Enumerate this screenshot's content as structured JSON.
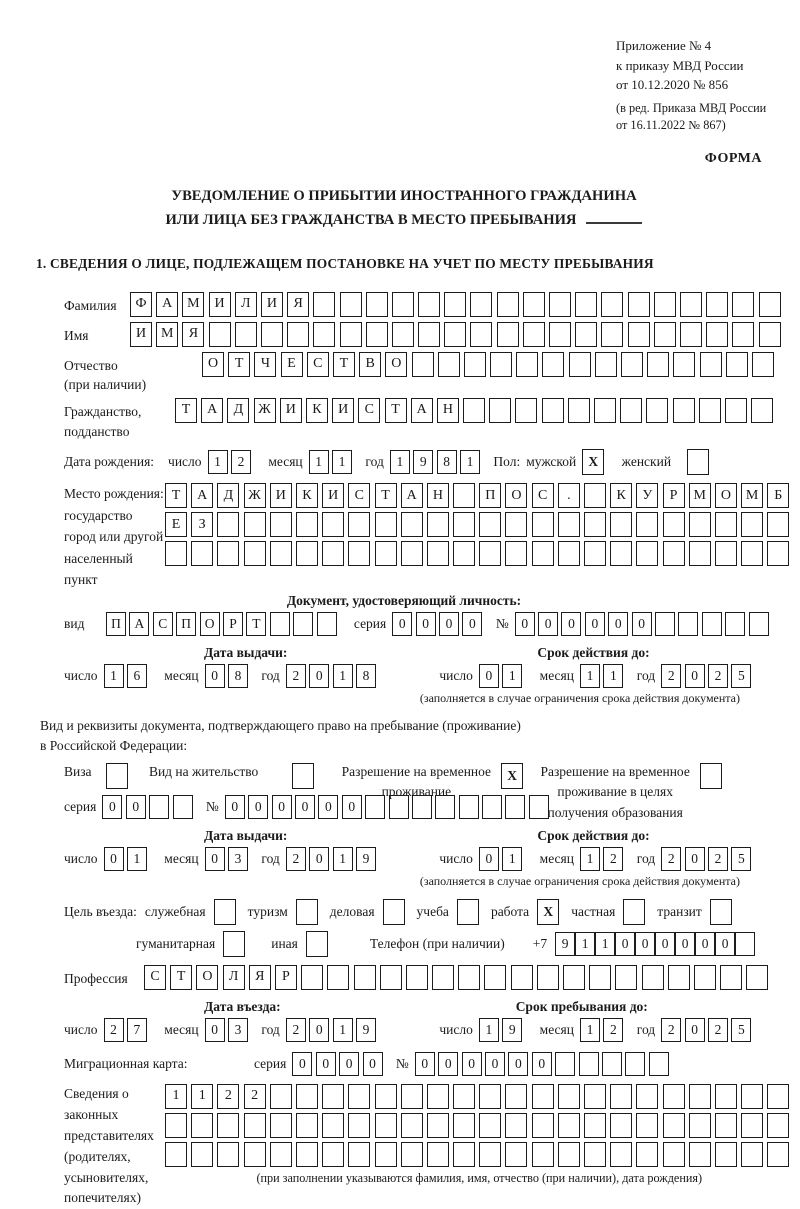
{
  "header": {
    "ref_lines": [
      "Приложение № 4",
      "к приказу МВД России",
      "от 10.12.2020 № 856"
    ],
    "ref_sub_lines": [
      "(в ред. Приказа МВД России",
      "от 16.11.2022 № 867)"
    ],
    "form_label": "ФОРМА"
  },
  "title": {
    "line1": "УВЕДОМЛЕНИЕ О ПРИБЫТИИ ИНОСТРАННОГО ГРАЖДАНИНА",
    "line2": "ИЛИ ЛИЦА БЕЗ ГРАЖДАНСТВА В МЕСТО ПРЕБЫВАНИЯ"
  },
  "section1": {
    "heading": "1. СВЕДЕНИЯ О ЛИЦЕ, ПОДЛЕЖАЩЕМ ПОСТАНОВКЕ НА УЧЕТ ПО МЕСТУ ПРЕБЫВАНИЯ"
  },
  "labels": {
    "day": "число",
    "month": "месяц",
    "year": "год",
    "series": "серия",
    "number": "№"
  },
  "person": {
    "surname_label": "Фамилия",
    "surname": "ФАМИЛИЯ",
    "name_label": "Имя",
    "name": "ИМЯ",
    "patronymic_label": "Отчество",
    "patronymic_label2": "(при наличии)",
    "patronymic": "ОТЧЕСТВО",
    "citizenship_label": "Гражданство,",
    "citizenship_label2": "подданство",
    "citizenship": "ТАДЖИКИСТАН"
  },
  "birth": {
    "label": "Дата рождения:",
    "day": "12",
    "month": "11",
    "year": "1981",
    "sex_label": "Пол:",
    "male_label": "мужской",
    "male_mark": "X",
    "female_label": "женский",
    "female_mark": ""
  },
  "birthplace": {
    "labels": [
      "Место рождения:",
      "государство",
      "город или другой",
      "населенный пункт"
    ],
    "row1": "ТАДЖИКИСТАН ПОС. КУРМОМБ",
    "row2": "ЕЗ",
    "row3": ""
  },
  "id_doc": {
    "heading": "Документ, удостоверяющий личность:",
    "type_label": "вид",
    "type_value": "ПАСПОРТ",
    "series_value": "0000",
    "number_value": "000000",
    "issue_heading": "Дата выдачи:",
    "issue": {
      "day": "16",
      "month": "08",
      "year": "2018"
    },
    "valid_heading": "Срок действия до:",
    "valid": {
      "day": "01",
      "month": "11",
      "year": "2025"
    },
    "note": "(заполняется в случае ограничения срока действия документа)"
  },
  "res_doc": {
    "line1": "Вид и реквизиты документа, подтверждающего право на пребывание (проживание)",
    "line2": "в Российской Федерации:",
    "options": [
      {
        "label_lines": [
          "Виза"
        ],
        "mark": ""
      },
      {
        "label_lines": [
          "Вид на жительство"
        ],
        "mark": ""
      },
      {
        "label_lines": [
          "Разрешение на временное",
          "проживание"
        ],
        "mark": "X"
      },
      {
        "label_lines": [
          "Разрешение на временное",
          "проживание в целях",
          "получения образования"
        ],
        "mark": ""
      }
    ],
    "series_value": "00",
    "number_value": "000000",
    "issue_heading": "Дата выдачи:",
    "issue": {
      "day": "01",
      "month": "03",
      "year": "2019"
    },
    "valid_heading": "Срок действия до:",
    "valid": {
      "day": "01",
      "month": "12",
      "year": "2025"
    },
    "note": "(заполняется в случае ограничения срока действия документа)"
  },
  "purpose": {
    "label": "Цель въезда:",
    "row1": [
      {
        "label": "служебная",
        "mark": ""
      },
      {
        "label": "туризм",
        "mark": ""
      },
      {
        "label": "деловая",
        "mark": ""
      },
      {
        "label": "учеба",
        "mark": ""
      },
      {
        "label": "работа",
        "mark": "X"
      },
      {
        "label": "частная",
        "mark": ""
      },
      {
        "label": "транзит",
        "mark": ""
      }
    ],
    "row2": [
      {
        "label": "гуманитарная",
        "mark": ""
      },
      {
        "label": "иная",
        "mark": ""
      }
    ],
    "phone_label": "Телефон (при наличии)",
    "phone_prefix": "+7",
    "phone_value": "911000000"
  },
  "profession": {
    "label": "Профессия",
    "value": "СТОЛЯР"
  },
  "entry": {
    "issue_heading": "Дата въезда:",
    "issue": {
      "day": "27",
      "month": "03",
      "year": "2019"
    },
    "valid_heading": "Срок пребывания до:",
    "valid": {
      "day": "19",
      "month": "12",
      "year": "2025"
    }
  },
  "migration_card": {
    "label": "Миграционная карта:",
    "series_value": "0000",
    "number_value": "000000"
  },
  "representatives": {
    "label_lines": [
      "Сведения о",
      "законных",
      "представителях",
      "(родителях,",
      "усыновителях,",
      "попечителях)"
    ],
    "row1": "1122",
    "row2": "",
    "row3": "",
    "note": "(при заполнении указываются фамилия, имя, отчество (при наличии), дата рождения)"
  }
}
